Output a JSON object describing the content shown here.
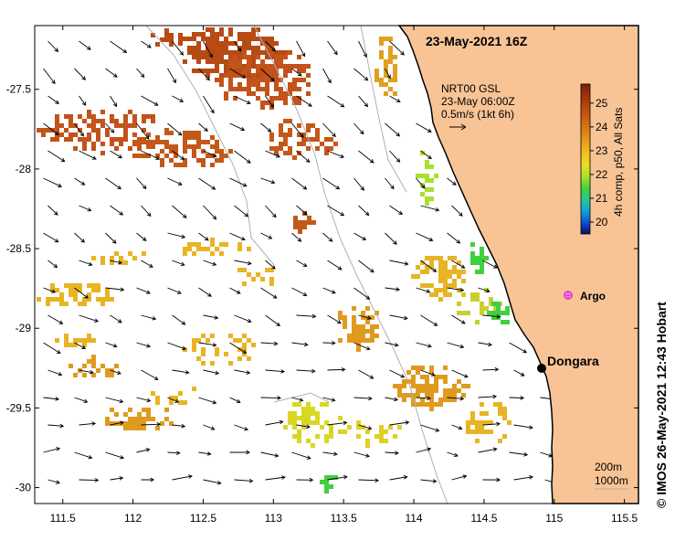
{
  "map": {
    "title": "23-May-2021 16Z",
    "credit": "©  IMOS 26-May-2021 12:43 Hobart",
    "lon_ticks": [
      "111.5",
      "112",
      "112.5",
      "113",
      "113.5",
      "114",
      "114.5",
      "115",
      "115.5"
    ],
    "lat_ticks": [
      "-27.5",
      "-28",
      "-28.5",
      "-29",
      "-29.5",
      "-30"
    ],
    "lon_range": [
      111.3,
      115.6
    ],
    "lat_range": [
      -27.1,
      -30.1
    ],
    "current_legend": {
      "line1": "NRT00 GSL",
      "line2": "23-May 06:00Z",
      "line3": "0.5m/s (1kt 6h)"
    },
    "colorbar": {
      "label": "4h comp, p50, All Sats",
      "ticks": [
        "25",
        "24",
        "23",
        "22",
        "21",
        "20"
      ],
      "range": [
        19.5,
        25.8
      ]
    },
    "bathymetry_legend": {
      "line1": "200m",
      "line2": "1000m"
    },
    "places": {
      "dongara": "Dongara",
      "argo": "Argo"
    },
    "colors": {
      "land": "#f8c496",
      "argo": "#e040e0",
      "isobath": "#b0b0b0"
    }
  }
}
